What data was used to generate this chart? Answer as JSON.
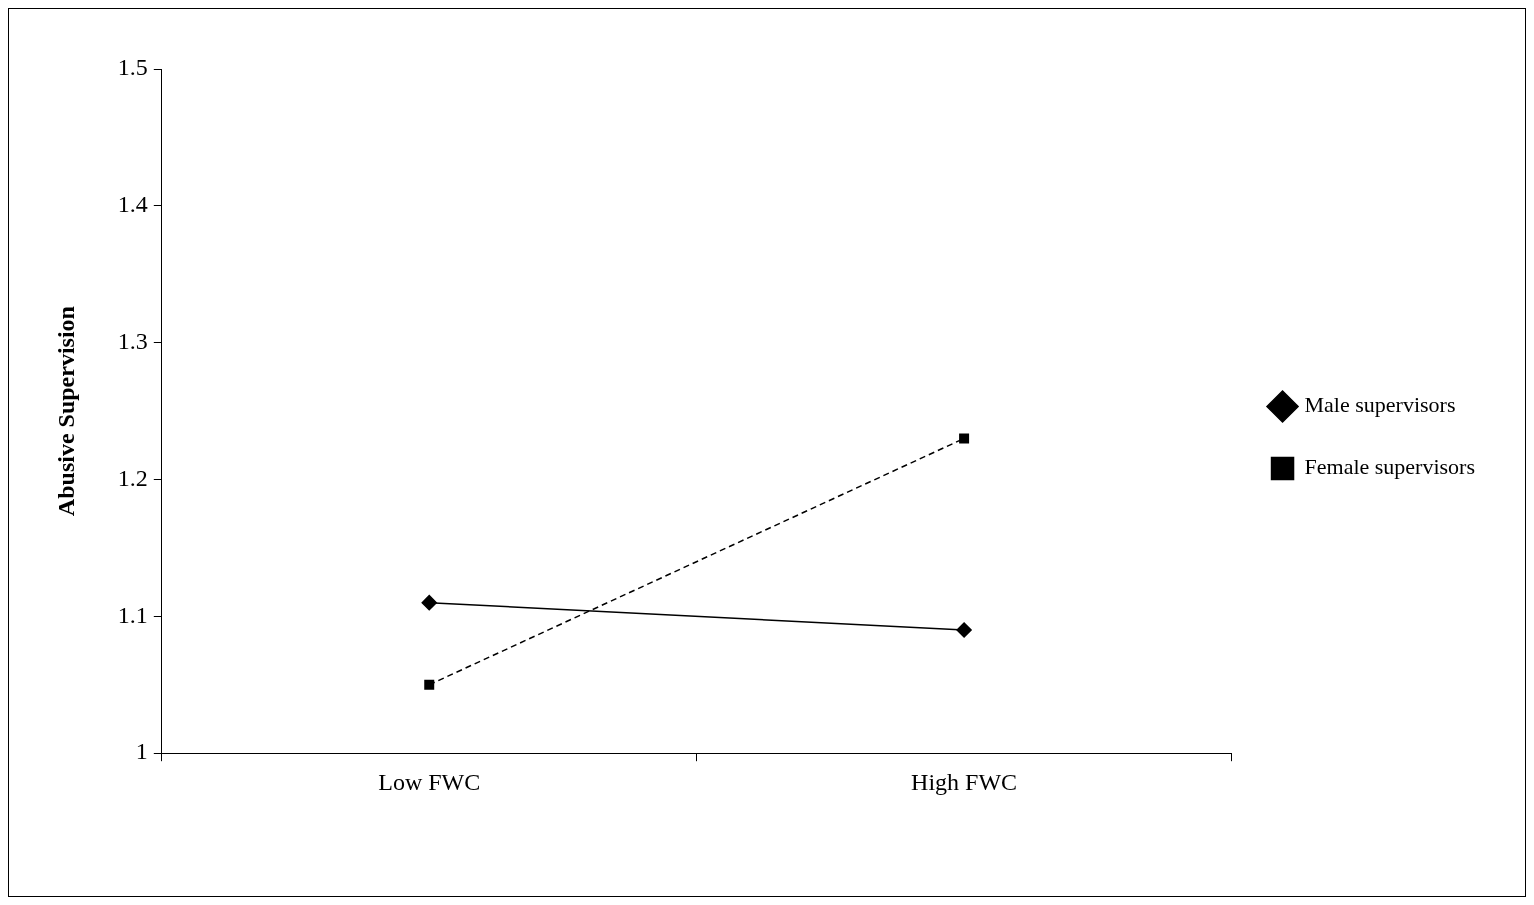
{
  "chart_data": {
    "type": "line",
    "ylabel": "Abusive Supervision",
    "categories": [
      "Low FWC",
      "High FWC"
    ],
    "series": [
      {
        "name": "Male supervisors",
        "color": "#000000",
        "values": [
          1.11,
          1.09
        ],
        "marker": "diamond",
        "line_style": "solid"
      },
      {
        "name": "Female supervisors",
        "color": "#000000",
        "values": [
          1.05,
          1.23
        ],
        "marker": "square",
        "line_style": "dashed"
      }
    ],
    "ylim": [
      1,
      1.5
    ],
    "yticks": [
      1,
      1.1,
      1.2,
      1.3,
      1.4,
      1.5
    ],
    "grid": false,
    "legend": "right"
  }
}
